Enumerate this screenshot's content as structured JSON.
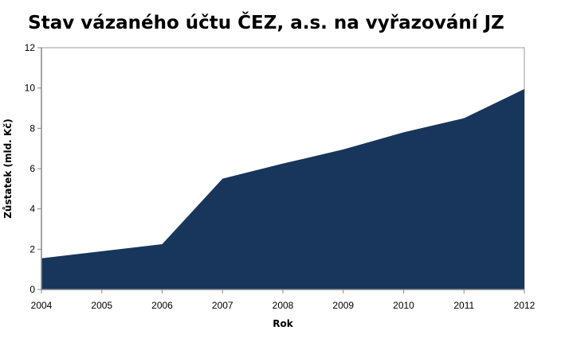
{
  "chart_data": {
    "type": "area",
    "title": "Stav vázaného účtu ČEZ, a.s. na vyřazování JZ",
    "xlabel": "Rok",
    "ylabel": "Zůstatek (mld. Kč)",
    "x": [
      "2004",
      "2005",
      "2006",
      "2007",
      "2008",
      "2009",
      "2010",
      "2011",
      "2012"
    ],
    "series": [
      {
        "values": [
          1.55,
          1.9,
          2.25,
          5.5,
          6.25,
          6.95,
          7.8,
          8.5,
          9.95
        ]
      }
    ],
    "ylim": [
      0,
      12
    ],
    "yticks": [
      "0",
      "2",
      "4",
      "6",
      "8",
      "10",
      "12"
    ],
    "grid": false,
    "legend": "none",
    "colors": {
      "area_fill": "#18365c",
      "axis": "#878787",
      "plot_border": "#999999"
    }
  }
}
